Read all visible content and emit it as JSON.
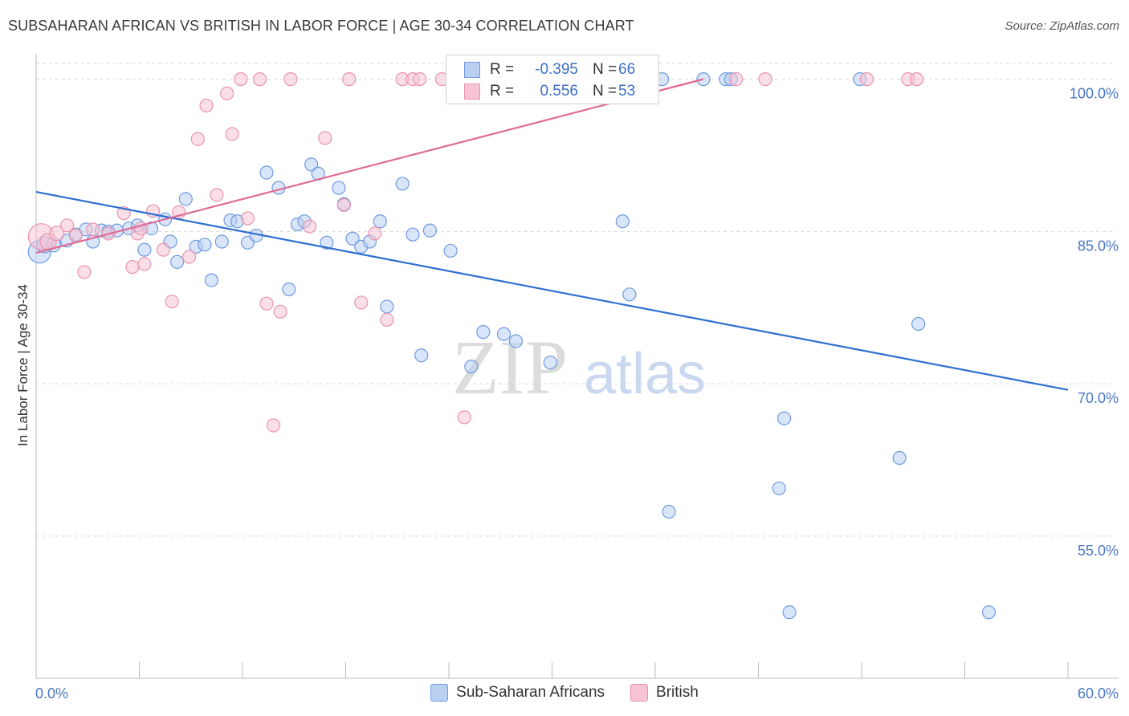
{
  "header": {
    "title": "SUBSAHARAN AFRICAN VS BRITISH IN LABOR FORCE | AGE 30-34 CORRELATION CHART",
    "source": "Source: ZipAtlas.com"
  },
  "watermark": {
    "zip": "ZIP",
    "atlas": "atlas"
  },
  "legend": {
    "rows": [
      {
        "r_label": "R =",
        "r_value": "-0.395",
        "n_label": "N =",
        "n_value": "66"
      },
      {
        "r_label": "R =",
        "r_value": "0.556",
        "n_label": "N =",
        "n_value": "53"
      }
    ]
  },
  "colors": {
    "blue_fill": "#b9d0f2",
    "blue_stroke": "#6f9be0",
    "blue_line": "#2e6fd0",
    "pink_fill": "#f6c4d4",
    "pink_stroke": "#ea93b0",
    "pink_line": "#e06a94",
    "grid": "#d9d9d9",
    "tick_text": "#4a78c4"
  },
  "chart_data": {
    "type": "scatter",
    "title": "SUBSAHARAN AFRICAN VS BRITISH IN LABOR FORCE | AGE 30-34 CORRELATION CHART",
    "xlabel": "",
    "ylabel": "In Labor Force | Age 30-34",
    "xlim": [
      0,
      60
    ],
    "ylim": [
      41,
      102.5
    ],
    "x_ticks": [
      {
        "value": 0,
        "label": "0.0%"
      },
      {
        "value": 60,
        "label": "60.0%"
      }
    ],
    "y_ticks": [
      {
        "value": 100,
        "label": "100.0%"
      },
      {
        "value": 85,
        "label": "85.0%"
      },
      {
        "value": 70,
        "label": "70.0%"
      },
      {
        "value": 55,
        "label": "55.0%"
      }
    ],
    "grid": true,
    "legend_position": "top-center",
    "series": [
      {
        "name": "Sub-Saharan Africans",
        "color": "#b9d0f2",
        "trend": {
          "x": [
            0,
            60
          ],
          "y": [
            88.9,
            69.4
          ]
        },
        "points": [
          [
            0.2,
            83.0,
            14
          ],
          [
            0.5,
            83.7,
            10
          ],
          [
            1.0,
            83.7,
            9
          ],
          [
            1.8,
            84.1,
            8
          ],
          [
            2.3,
            84.7,
            8
          ],
          [
            2.9,
            85.2,
            8
          ],
          [
            3.3,
            84.0,
            8
          ],
          [
            3.8,
            85.1,
            8
          ],
          [
            4.2,
            85.0,
            8
          ],
          [
            4.7,
            85.1,
            8
          ],
          [
            5.4,
            85.3,
            8
          ],
          [
            5.9,
            85.6,
            8
          ],
          [
            6.3,
            83.2,
            8
          ],
          [
            6.7,
            85.3,
            8
          ],
          [
            7.5,
            86.2,
            8
          ],
          [
            7.8,
            84.0,
            8
          ],
          [
            8.2,
            82.0,
            8
          ],
          [
            8.7,
            88.2,
            8
          ],
          [
            9.3,
            83.5,
            8
          ],
          [
            9.8,
            83.7,
            8
          ],
          [
            10.2,
            80.2,
            8
          ],
          [
            10.8,
            84.0,
            8
          ],
          [
            11.3,
            86.1,
            8
          ],
          [
            11.7,
            86.0,
            8
          ],
          [
            12.3,
            83.9,
            8
          ],
          [
            12.8,
            84.6,
            8
          ],
          [
            13.4,
            90.8,
            8
          ],
          [
            14.1,
            89.3,
            8
          ],
          [
            14.7,
            79.3,
            8
          ],
          [
            15.2,
            85.7,
            8
          ],
          [
            15.6,
            86.0,
            8
          ],
          [
            16.0,
            91.6,
            8
          ],
          [
            16.4,
            90.7,
            8
          ],
          [
            16.9,
            83.9,
            8
          ],
          [
            17.6,
            89.3,
            8
          ],
          [
            17.9,
            87.7,
            8
          ],
          [
            18.4,
            84.3,
            8
          ],
          [
            18.9,
            83.5,
            8
          ],
          [
            19.4,
            84.0,
            8
          ],
          [
            20.0,
            86.0,
            8
          ],
          [
            20.4,
            77.6,
            8
          ],
          [
            21.3,
            89.7,
            8
          ],
          [
            21.9,
            84.7,
            8
          ],
          [
            22.4,
            72.8,
            8
          ],
          [
            22.9,
            85.1,
            8
          ],
          [
            24.1,
            83.1,
            8
          ],
          [
            25.3,
            71.7,
            8
          ],
          [
            26.0,
            75.1,
            8
          ],
          [
            27.2,
            74.9,
            8
          ],
          [
            27.9,
            74.2,
            8
          ],
          [
            29.1,
            100.0,
            8
          ],
          [
            29.9,
            72.1,
            8
          ],
          [
            34.1,
            86.0,
            8
          ],
          [
            34.5,
            78.8,
            8
          ],
          [
            36.8,
            57.4,
            8
          ],
          [
            38.8,
            100.0,
            8
          ],
          [
            40.1,
            100.0,
            8
          ],
          [
            43.2,
            59.7,
            8
          ],
          [
            43.5,
            66.6,
            8
          ],
          [
            43.8,
            47.5,
            8
          ],
          [
            50.2,
            62.7,
            8
          ],
          [
            51.3,
            75.9,
            8
          ],
          [
            55.4,
            47.5,
            8
          ],
          [
            47.9,
            100.0,
            8
          ],
          [
            36.4,
            100.0,
            8
          ],
          [
            40.4,
            100.0,
            8
          ]
        ]
      },
      {
        "name": "British",
        "color": "#f6c4d4",
        "trend": {
          "x": [
            0,
            38.8
          ],
          "y": [
            82.9,
            100.0
          ]
        },
        "points": [
          [
            0.3,
            84.5,
            16
          ],
          [
            0.7,
            84.0,
            10
          ],
          [
            1.2,
            84.8,
            9
          ],
          [
            1.8,
            85.6,
            8
          ],
          [
            2.3,
            84.6,
            8
          ],
          [
            2.8,
            81.0,
            8
          ],
          [
            3.3,
            85.2,
            8
          ],
          [
            4.2,
            84.8,
            8
          ],
          [
            5.1,
            86.8,
            8
          ],
          [
            5.6,
            81.5,
            8
          ],
          [
            5.9,
            84.8,
            8
          ],
          [
            6.1,
            85.3,
            8
          ],
          [
            6.3,
            81.8,
            8
          ],
          [
            6.8,
            87.0,
            8
          ],
          [
            7.4,
            83.2,
            8
          ],
          [
            7.9,
            78.1,
            8
          ],
          [
            8.3,
            86.9,
            8
          ],
          [
            8.9,
            82.5,
            8
          ],
          [
            9.4,
            94.1,
            8
          ],
          [
            9.9,
            97.4,
            8
          ],
          [
            10.5,
            88.6,
            8
          ],
          [
            11.1,
            98.6,
            8
          ],
          [
            11.4,
            94.6,
            8
          ],
          [
            11.9,
            100.0,
            8
          ],
          [
            12.3,
            86.3,
            8
          ],
          [
            13.0,
            100.0,
            8
          ],
          [
            13.4,
            77.9,
            8
          ],
          [
            13.8,
            65.9,
            8
          ],
          [
            14.2,
            77.1,
            8
          ],
          [
            14.8,
            100.0,
            8
          ],
          [
            15.9,
            85.5,
            8
          ],
          [
            16.8,
            94.2,
            8
          ],
          [
            17.9,
            87.6,
            8
          ],
          [
            18.2,
            100.0,
            8
          ],
          [
            18.9,
            78.0,
            8
          ],
          [
            19.7,
            84.8,
            8
          ],
          [
            20.4,
            76.3,
            8
          ],
          [
            21.3,
            100.0,
            8
          ],
          [
            21.9,
            100.0,
            8
          ],
          [
            22.3,
            100.0,
            8
          ],
          [
            23.6,
            100.0,
            8
          ],
          [
            24.9,
            66.7,
            8
          ],
          [
            25.4,
            100.0,
            8
          ],
          [
            26.1,
            100.0,
            8
          ],
          [
            27.1,
            100.0,
            8
          ],
          [
            31.3,
            100.0,
            8
          ],
          [
            32.7,
            100.0,
            8
          ],
          [
            35.8,
            100.0,
            8
          ],
          [
            40.7,
            100.0,
            8
          ],
          [
            42.4,
            100.0,
            8
          ],
          [
            48.3,
            100.0,
            8
          ],
          [
            50.7,
            100.0,
            8
          ],
          [
            51.2,
            100.0,
            8
          ]
        ]
      }
    ]
  }
}
